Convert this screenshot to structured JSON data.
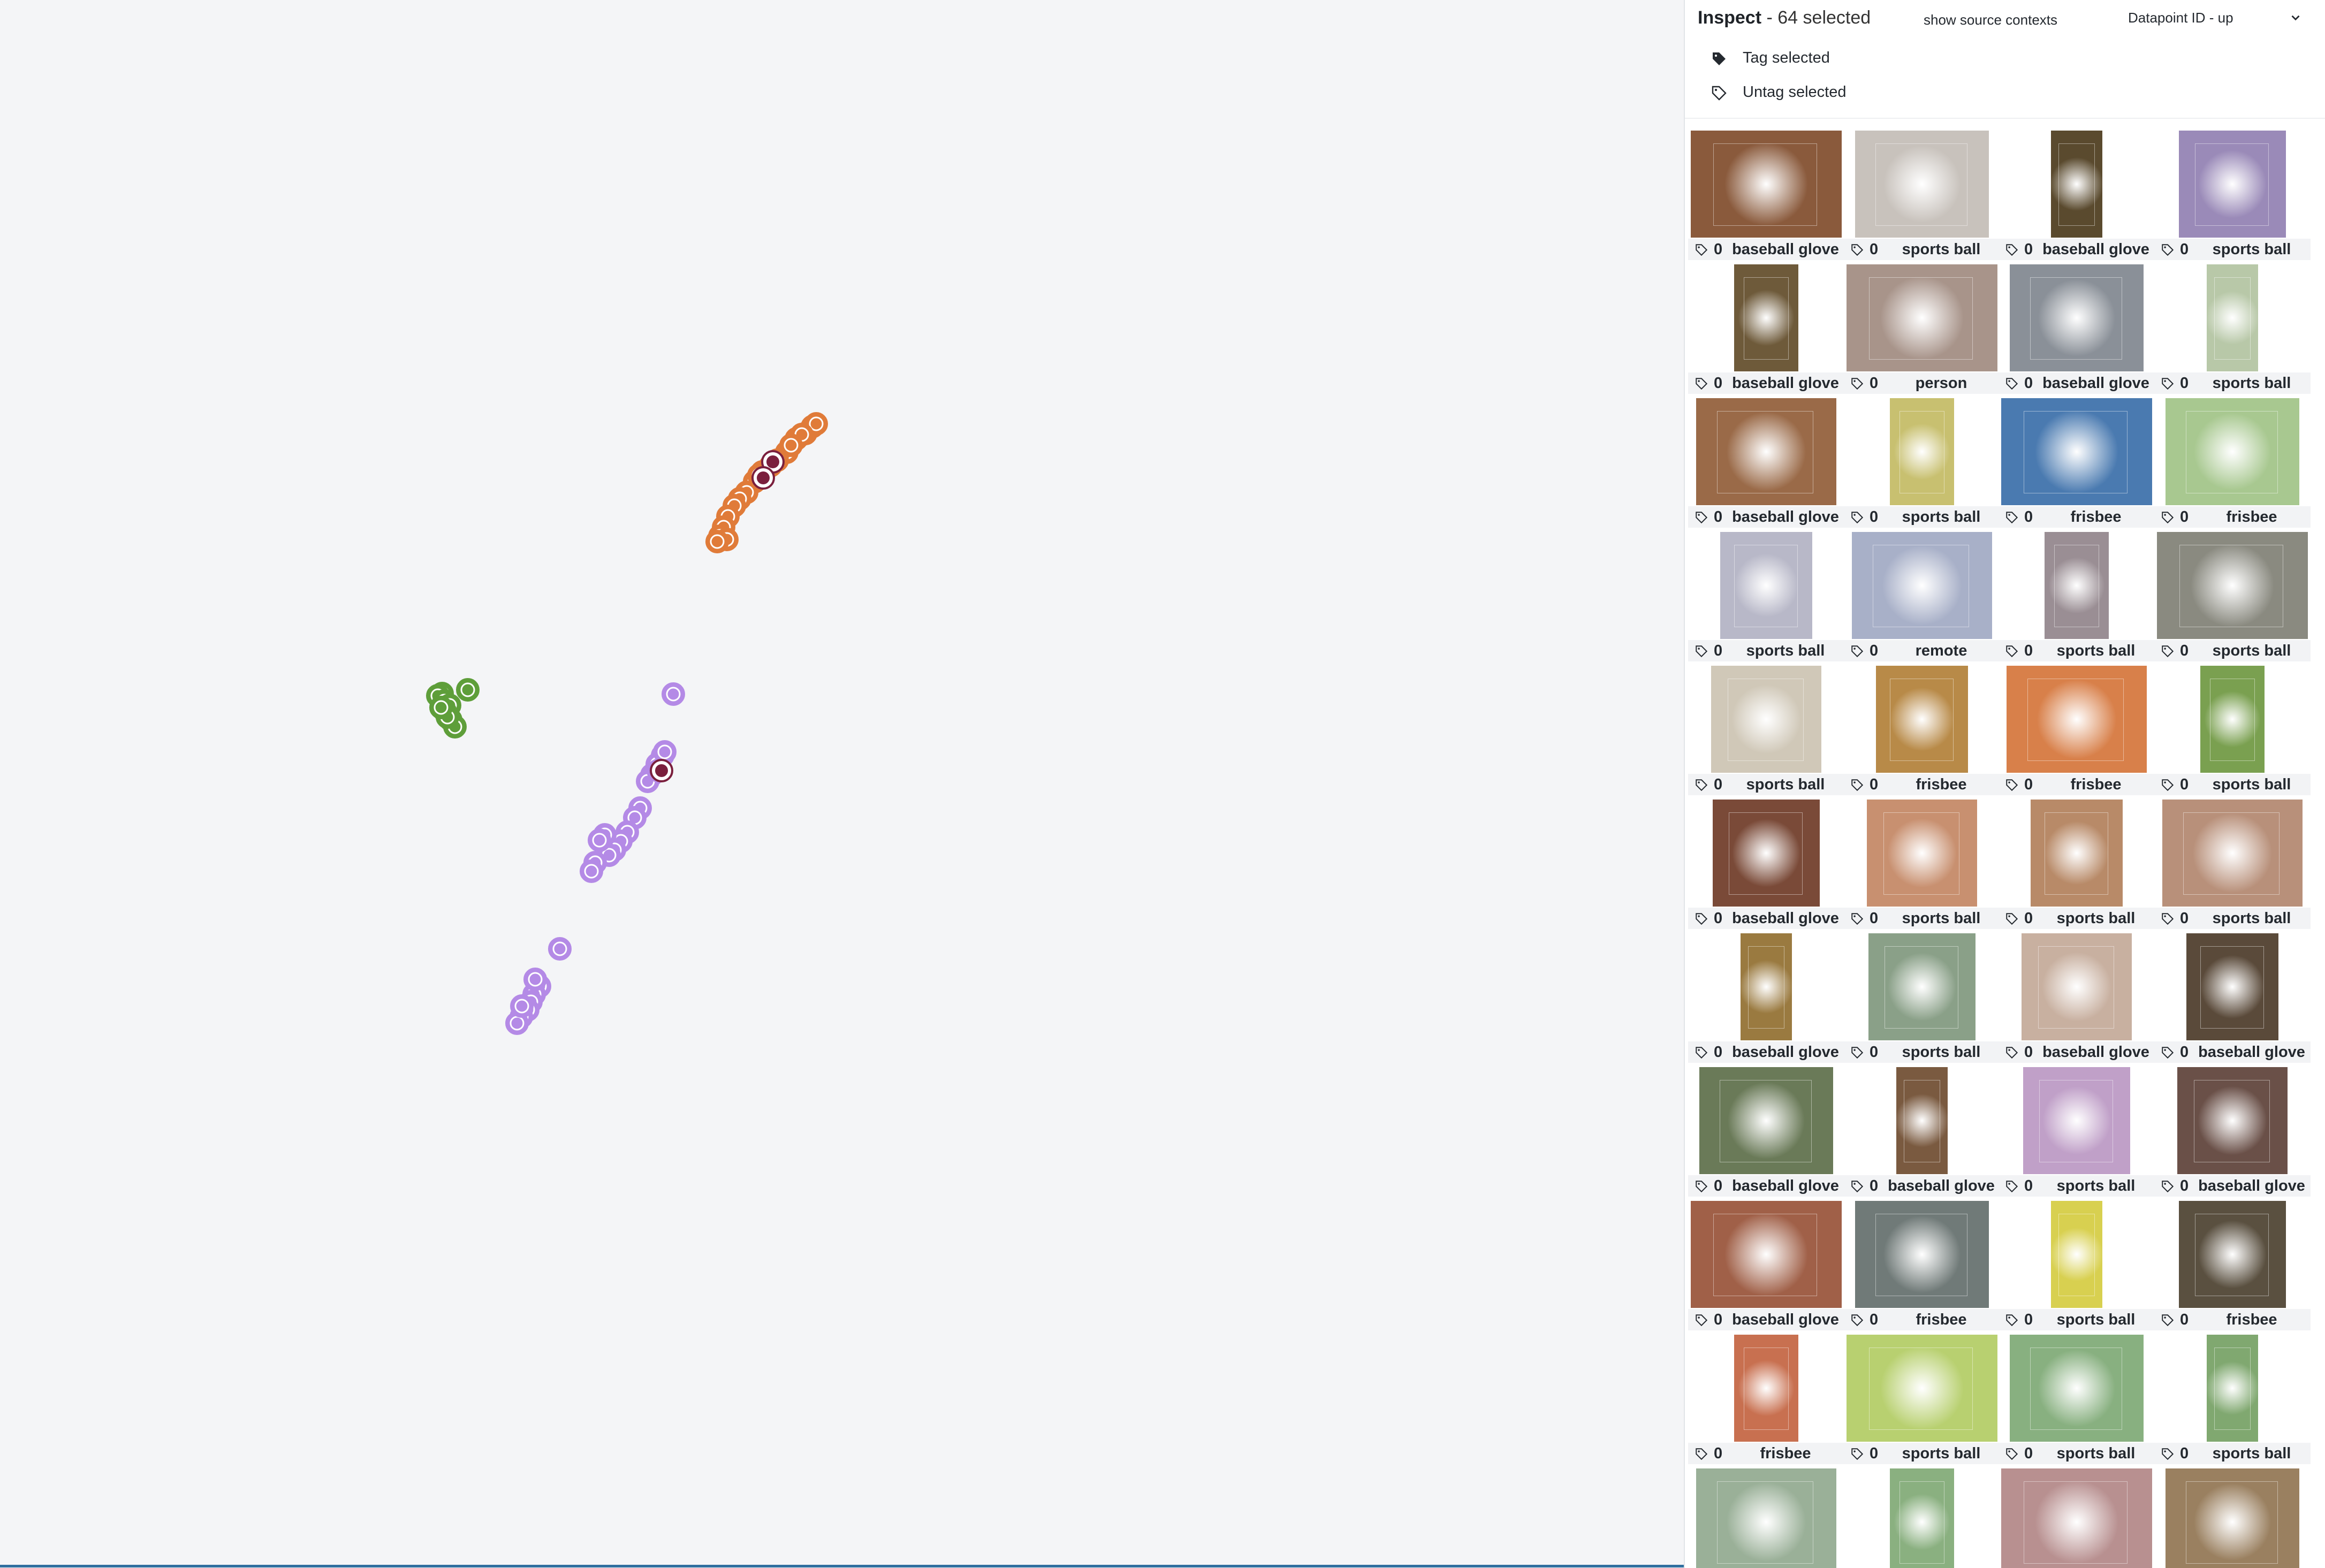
{
  "panel": {
    "title": "Inspect",
    "subtitle": "- 64 selected",
    "show_source_label": "show source contexts",
    "sort": {
      "selected": "Datapoint ID - up"
    },
    "tag_selected_label": "Tag selected",
    "untag_selected_label": "Untag selected"
  },
  "tiles": [
    {
      "count": "0",
      "label": "baseball glove",
      "color": "#8a5a3c"
    },
    {
      "count": "0",
      "label": "sports ball",
      "color": "#c8c2bc"
    },
    {
      "count": "0",
      "label": "baseball glove",
      "color": "#5a4a2e"
    },
    {
      "count": "0",
      "label": "sports ball",
      "color": "#9a8ab8"
    },
    {
      "count": "0",
      "label": "baseball glove",
      "color": "#6e5a3a"
    },
    {
      "count": "0",
      "label": "person",
      "color": "#a8948a"
    },
    {
      "count": "0",
      "label": "baseball glove",
      "color": "#8a9098"
    },
    {
      "count": "0",
      "label": "sports ball",
      "color": "#b8c8a8"
    },
    {
      "count": "0",
      "label": "baseball glove",
      "color": "#9a6a48"
    },
    {
      "count": "0",
      "label": "sports ball",
      "color": "#c8c070"
    },
    {
      "count": "0",
      "label": "frisbee",
      "color": "#4a7ab0"
    },
    {
      "count": "0",
      "label": "frisbee",
      "color": "#a8c890"
    },
    {
      "count": "0",
      "label": "sports ball",
      "color": "#b8b8c8"
    },
    {
      "count": "0",
      "label": "remote",
      "color": "#a8b0c8"
    },
    {
      "count": "0",
      "label": "sports ball",
      "color": "#9a8e94"
    },
    {
      "count": "0",
      "label": "sports ball",
      "color": "#8a8a80"
    },
    {
      "count": "0",
      "label": "sports ball",
      "color": "#d0c8b8"
    },
    {
      "count": "0",
      "label": "frisbee",
      "color": "#b88a48"
    },
    {
      "count": "0",
      "label": "frisbee",
      "color": "#d8804a"
    },
    {
      "count": "0",
      "label": "sports ball",
      "color": "#7aa050"
    },
    {
      "count": "0",
      "label": "baseball glove",
      "color": "#7a4a38"
    },
    {
      "count": "0",
      "label": "sports ball",
      "color": "#c89070"
    },
    {
      "count": "0",
      "label": "sports ball",
      "color": "#b88a68"
    },
    {
      "count": "0",
      "label": "sports ball",
      "color": "#b8907a"
    },
    {
      "count": "0",
      "label": "baseball glove",
      "color": "#9a7a40"
    },
    {
      "count": "0",
      "label": "sports ball",
      "color": "#8aa088"
    },
    {
      "count": "0",
      "label": "baseball glove",
      "color": "#c8b0a0"
    },
    {
      "count": "0",
      "label": "baseball glove",
      "color": "#5a4a3a"
    },
    {
      "count": "0",
      "label": "baseball glove",
      "color": "#6a7a58"
    },
    {
      "count": "0",
      "label": "baseball glove",
      "color": "#7a5a40"
    },
    {
      "count": "0",
      "label": "sports ball",
      "color": "#c0a0c8"
    },
    {
      "count": "0",
      "label": "baseball glove",
      "color": "#6a5048"
    },
    {
      "count": "0",
      "label": "baseball glove",
      "color": "#a06048"
    },
    {
      "count": "0",
      "label": "frisbee",
      "color": "#707a78"
    },
    {
      "count": "0",
      "label": "sports ball",
      "color": "#d8d050"
    },
    {
      "count": "0",
      "label": "frisbee",
      "color": "#5a5040"
    },
    {
      "count": "0",
      "label": "frisbee",
      "color": "#c87050"
    },
    {
      "count": "0",
      "label": "sports ball",
      "color": "#b8d070"
    },
    {
      "count": "0",
      "label": "sports ball",
      "color": "#88b080"
    },
    {
      "count": "0",
      "label": "sports ball",
      "color": "#80a870"
    },
    {
      "count": "",
      "label": "",
      "color": "#9ab098"
    },
    {
      "count": "",
      "label": "",
      "color": "#8ab080"
    },
    {
      "count": "",
      "label": "",
      "color": "#b89090"
    },
    {
      "count": "",
      "label": "",
      "color": "#9a8060"
    }
  ],
  "clusters": [
    {
      "name": "orange",
      "color": "#e07b39",
      "points": [
        [
          1518,
          797
        ],
        [
          1505,
          810
        ],
        [
          1488,
          820
        ],
        [
          1470,
          845
        ],
        [
          1452,
          860
        ],
        [
          1440,
          870
        ],
        [
          1424,
          882
        ],
        [
          1410,
          900
        ],
        [
          1395,
          920
        ],
        [
          1382,
          932
        ],
        [
          1372,
          945
        ],
        [
          1360,
          965
        ],
        [
          1352,
          985
        ],
        [
          1345,
          1002
        ],
        [
          1358,
          1008
        ],
        [
          1340,
          1012
        ],
        [
          1525,
          792
        ],
        [
          1498,
          812
        ],
        [
          1478,
          832
        ],
        [
          1418,
          888
        ]
      ]
    },
    {
      "name": "purple",
      "color": "#b48ae6",
      "points": [
        [
          1258,
          1297
        ],
        [
          1238,
          1412
        ],
        [
          1228,
          1428
        ],
        [
          1218,
          1448
        ],
        [
          1210,
          1460
        ],
        [
          1196,
          1510
        ],
        [
          1186,
          1528
        ],
        [
          1172,
          1555
        ],
        [
          1160,
          1572
        ],
        [
          1148,
          1588
        ],
        [
          1138,
          1598
        ],
        [
          1130,
          1560
        ],
        [
          1120,
          1570
        ],
        [
          1112,
          1612
        ],
        [
          1105,
          1628
        ],
        [
          1230,
          1440
        ],
        [
          1242,
          1405
        ],
        [
          1046,
          1773
        ],
        [
          1008,
          1843
        ],
        [
          998,
          1858
        ],
        [
          992,
          1872
        ],
        [
          986,
          1887
        ],
        [
          974,
          1900
        ],
        [
          966,
          1912
        ],
        [
          975,
          1880
        ],
        [
          1000,
          1830
        ]
      ]
    },
    {
      "name": "green",
      "color": "#5e9e3a",
      "points": [
        [
          874,
          1289
        ],
        [
          826,
          1296
        ],
        [
          818,
          1300
        ],
        [
          830,
          1310
        ],
        [
          840,
          1318
        ],
        [
          832,
          1330
        ],
        [
          842,
          1345
        ],
        [
          850,
          1358
        ],
        [
          836,
          1340
        ],
        [
          824,
          1322
        ]
      ]
    },
    {
      "name": "selected",
      "color": "#7a1f3d",
      "points": [
        [
          1444,
          863
        ],
        [
          1426,
          893
        ],
        [
          1236,
          1440
        ]
      ]
    }
  ]
}
